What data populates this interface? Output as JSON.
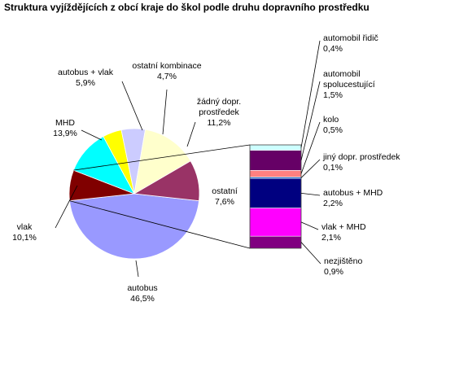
{
  "chart_data": {
    "type": "pie",
    "title": "Struktura vyjíždějících z obcí kraje do škol podle druhu dopravního prostředku",
    "slices": [
      {
        "label": "autobus",
        "value": 46.5,
        "value_label": "46,5%",
        "color": "#9999ff"
      },
      {
        "label": "ostatní",
        "value": 7.6,
        "value_label": "7,6%",
        "color": "#800000"
      },
      {
        "label": "žádný dopr. prostředek",
        "value": 11.2,
        "value_label": "11,2%",
        "color": "#00ffff"
      },
      {
        "label": "ostatní kombinace",
        "value": 4.7,
        "value_label": "4,7%",
        "color": "#ffff00"
      },
      {
        "label": "autobus + vlak",
        "value": 5.9,
        "value_label": "5,9%",
        "color": "#ccccff"
      },
      {
        "label": "MHD",
        "value": 13.9,
        "value_label": "13,9%",
        "color": "#ffffcc"
      },
      {
        "label": "vlak",
        "value": 10.1,
        "value_label": "10,1%",
        "color": "#993366"
      }
    ],
    "breakdown_of": "ostatní",
    "breakdown": [
      {
        "label": "nezjištěno",
        "value": 0.9,
        "value_label": "0,9%",
        "color": "#800080"
      },
      {
        "label": "vlak + MHD",
        "value": 2.1,
        "value_label": "2,1%",
        "color": "#ff00ff"
      },
      {
        "label": "autobus + MHD",
        "value": 2.2,
        "value_label": "2,2%",
        "color": "#000080"
      },
      {
        "label": "jiný dopr. prostředek",
        "value": 0.1,
        "value_label": "0,1%",
        "color": "#0066cc"
      },
      {
        "label": "kolo",
        "value": 0.5,
        "value_label": "0,5%",
        "color": "#ff8080"
      },
      {
        "label": "automobil spolucestující",
        "value": 1.5,
        "value_label": "1,5%",
        "color": "#660066"
      },
      {
        "label": "automobil řidič",
        "value": 0.4,
        "value_label": "0,4%",
        "color": "#ccffff"
      }
    ]
  }
}
